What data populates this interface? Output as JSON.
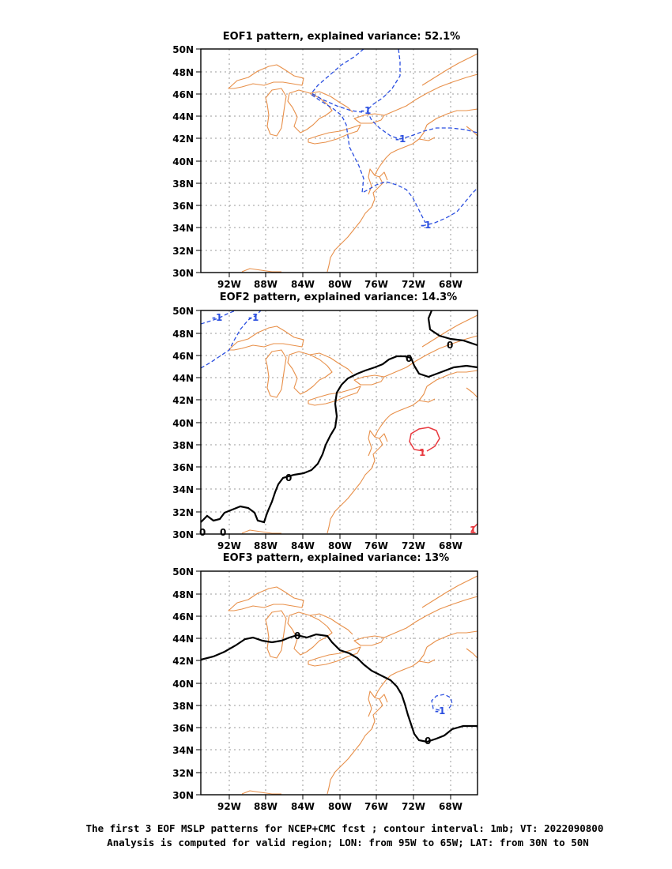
{
  "panels": [
    {
      "title": "EOF1 pattern, explained variance: 52.1%",
      "contour_labels": [
        "-1",
        "-1",
        "-1"
      ]
    },
    {
      "title": "EOF2 pattern, explained variance: 14.3%",
      "contour_labels": [
        "-1",
        "0",
        "0",
        "0",
        "0",
        "1",
        "1"
      ]
    },
    {
      "title": "EOF3 pattern, explained variance: 13%",
      "contour_labels": [
        "0",
        "0",
        "-1"
      ]
    }
  ],
  "axes": {
    "lat_labels": [
      "50N",
      "48N",
      "46N",
      "44N",
      "42N",
      "40N",
      "38N",
      "36N",
      "34N",
      "32N",
      "30N"
    ],
    "lon_labels": [
      "92W",
      "88W",
      "84W",
      "80W",
      "76W",
      "72W",
      "68W"
    ]
  },
  "colors": {
    "coastline": "#e8904a",
    "negative_contour": "#2b4fe0",
    "zero_contour": "#000000",
    "positive_contour": "#e8393f",
    "grid": "#999999"
  },
  "caption": {
    "line1": "The first 3 EOF MSLP patterns for NCEP+CMC fcst ; contour interval: 1mb; VT: 2022090800",
    "line2": "Analysis is computed for valid region; LON: from 95W to 65W; LAT: from 30N to 50N"
  }
}
